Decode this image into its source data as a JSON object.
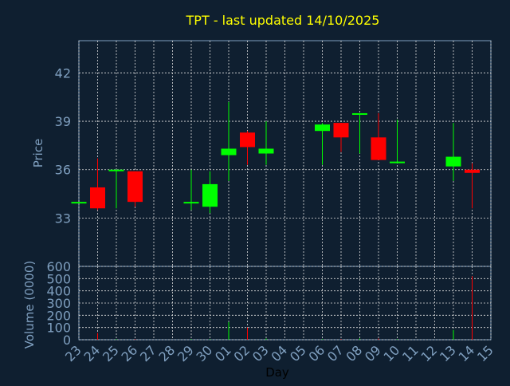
{
  "chart_data": [
    {
      "type": "candlestick",
      "title": "TPT - last updated 14/10/2025",
      "ylabel": "Price",
      "xlabel": "",
      "ylim": [
        30,
        44
      ],
      "yticks": [
        "33",
        "36",
        "39",
        "42"
      ],
      "grid": true,
      "colors": {
        "up": "#00ff00",
        "down": "#ff0000",
        "title": "#ffff00",
        "axis_text": "#7f9fbf",
        "grid": "#dddddd",
        "background": "#0f1f30"
      },
      "x": [
        "23",
        "24",
        "25",
        "26",
        "27",
        "28",
        "29",
        "30",
        "01",
        "02",
        "03",
        "04",
        "05",
        "06",
        "07",
        "08",
        "09",
        "10",
        "11",
        "12",
        "13",
        "14",
        "15"
      ],
      "candles": [
        {
          "day": "23",
          "open": 34.0,
          "high": 34.0,
          "low": 34.0,
          "close": 34.0,
          "dir": "up"
        },
        {
          "day": "24",
          "open": 34.9,
          "high": 36.7,
          "low": 33.5,
          "close": 33.6,
          "dir": "down"
        },
        {
          "day": "25",
          "open": 36.0,
          "high": 36.0,
          "low": 33.6,
          "close": 36.0,
          "dir": "up"
        },
        {
          "day": "26",
          "open": 35.9,
          "high": 35.9,
          "low": 33.7,
          "close": 34.0,
          "dir": "down"
        },
        {
          "day": "29",
          "open": 34.0,
          "high": 36.0,
          "low": 33.5,
          "close": 34.0,
          "dir": "up"
        },
        {
          "day": "30",
          "open": 33.7,
          "high": 35.9,
          "low": 33.3,
          "close": 35.1,
          "dir": "up"
        },
        {
          "day": "01",
          "open": 36.9,
          "high": 40.2,
          "low": 35.3,
          "close": 37.3,
          "dir": "up"
        },
        {
          "day": "02",
          "open": 38.3,
          "high": 38.4,
          "low": 36.3,
          "close": 37.4,
          "dir": "down"
        },
        {
          "day": "03",
          "open": 37.0,
          "high": 39.0,
          "low": 36.3,
          "close": 37.3,
          "dir": "up"
        },
        {
          "day": "06",
          "open": 38.4,
          "high": 38.9,
          "low": 36.3,
          "close": 38.8,
          "dir": "up"
        },
        {
          "day": "07",
          "open": 38.9,
          "high": 38.9,
          "low": 37.1,
          "close": 38.0,
          "dir": "down"
        },
        {
          "day": "08",
          "open": 39.5,
          "high": 39.5,
          "low": 37.0,
          "close": 39.5,
          "dir": "up"
        },
        {
          "day": "09",
          "open": 38.0,
          "high": 39.5,
          "low": 36.6,
          "close": 36.6,
          "dir": "down"
        },
        {
          "day": "10",
          "open": 36.4,
          "high": 39.1,
          "low": 36.4,
          "close": 36.5,
          "dir": "up"
        },
        {
          "day": "13",
          "open": 36.2,
          "high": 38.9,
          "low": 35.3,
          "close": 36.8,
          "dir": "up"
        },
        {
          "day": "14",
          "open": 36.0,
          "high": 36.4,
          "low": 33.6,
          "close": 35.8,
          "dir": "down"
        }
      ]
    },
    {
      "type": "bar",
      "ylabel": "Volume (0000)",
      "xlabel": "Day",
      "ylim": [
        0,
        600
      ],
      "yticks": [
        "0",
        "100",
        "200",
        "300",
        "400",
        "500",
        "600"
      ],
      "grid": true,
      "categories": [
        "23",
        "24",
        "25",
        "26",
        "27",
        "28",
        "29",
        "30",
        "01",
        "02",
        "03",
        "04",
        "05",
        "06",
        "07",
        "08",
        "09",
        "10",
        "11",
        "12",
        "13",
        "14",
        "15"
      ],
      "volumes": [
        {
          "day": "24",
          "value": 55,
          "dir": "down"
        },
        {
          "day": "25",
          "value": 5,
          "dir": "up"
        },
        {
          "day": "26",
          "value": 5,
          "dir": "down"
        },
        {
          "day": "29",
          "value": 5,
          "dir": "up"
        },
        {
          "day": "30",
          "value": 5,
          "dir": "up"
        },
        {
          "day": "01",
          "value": 145,
          "dir": "up"
        },
        {
          "day": "02",
          "value": 100,
          "dir": "down"
        },
        {
          "day": "03",
          "value": 10,
          "dir": "up"
        },
        {
          "day": "06",
          "value": 5,
          "dir": "up"
        },
        {
          "day": "07",
          "value": 5,
          "dir": "down"
        },
        {
          "day": "08",
          "value": 10,
          "dir": "up"
        },
        {
          "day": "09",
          "value": 10,
          "dir": "down"
        },
        {
          "day": "10",
          "value": 5,
          "dir": "up"
        },
        {
          "day": "13",
          "value": 80,
          "dir": "up"
        },
        {
          "day": "14",
          "value": 520,
          "dir": "down"
        }
      ]
    }
  ]
}
